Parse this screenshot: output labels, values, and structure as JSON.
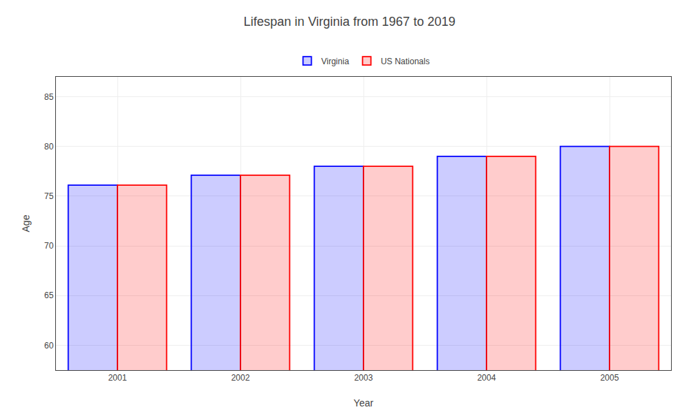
{
  "chart_data": {
    "type": "bar",
    "title": "Lifespan in Virginia from 1967 to 2019",
    "x_label": "Year",
    "y_label": "Age",
    "categories": [
      "2001",
      "2002",
      "2003",
      "2004",
      "2005"
    ],
    "series": [
      {
        "name": "Virginia",
        "color": "#0000ff",
        "values": [
          76.1,
          77.1,
          78.0,
          79.0,
          80.0
        ]
      },
      {
        "name": "US Nationals",
        "color": "#ff0000",
        "values": [
          76.1,
          77.1,
          78.0,
          79.0,
          80.0
        ]
      }
    ],
    "ylim": [
      57.5,
      87
    ],
    "yticks": [
      60,
      65,
      70,
      75,
      80,
      85
    ],
    "grid": true
  }
}
